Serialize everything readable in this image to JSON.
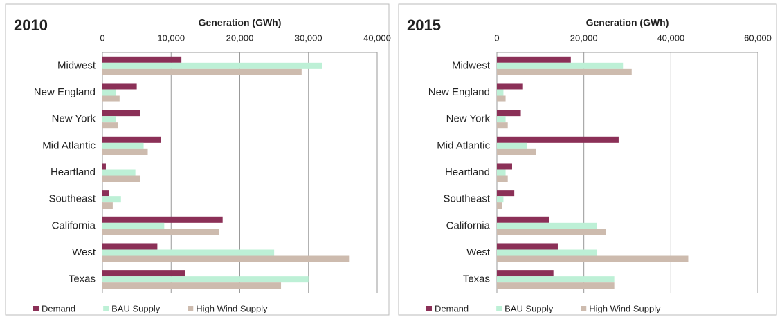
{
  "chart_data": [
    {
      "type": "bar",
      "title": "2010",
      "x_label": "Generation (GWh)",
      "categories": [
        "Midwest",
        "New England",
        "New York",
        "Mid Atlantic",
        "Heartland",
        "Southeast",
        "California",
        "West",
        "Texas"
      ],
      "series": [
        {
          "name": "Demand",
          "color": "#8b3057",
          "values": [
            11500,
            5000,
            5500,
            8500,
            500,
            1000,
            17500,
            8000,
            12000
          ]
        },
        {
          "name": "BAU Supply",
          "color": "#bdf0d6",
          "values": [
            32000,
            2000,
            2000,
            6000,
            4800,
            2700,
            9000,
            25000,
            30000
          ]
        },
        {
          "name": "High Wind Supply",
          "color": "#cdbbae",
          "values": [
            29000,
            2500,
            2300,
            6600,
            5500,
            1500,
            17000,
            36000,
            26000
          ]
        }
      ],
      "xlim": [
        0,
        40000
      ],
      "xticks": [
        0,
        {
          "value": 10000,
          "label": "10,000"
        },
        {
          "value": 20000,
          "label": "20,000"
        },
        {
          "value": 30000,
          "label": "30,000"
        },
        {
          "value": 40000,
          "label": "40,000"
        }
      ],
      "grid": true
    },
    {
      "type": "bar",
      "title": "2015",
      "x_label": "Generation (GWh)",
      "categories": [
        "Midwest",
        "New England",
        "New York",
        "Mid Atlantic",
        "Heartland",
        "Southeast",
        "California",
        "West",
        "Texas"
      ],
      "series": [
        {
          "name": "Demand",
          "color": "#8b3057",
          "values": [
            17000,
            6000,
            5500,
            28000,
            3500,
            4000,
            12000,
            14000,
            13000
          ]
        },
        {
          "name": "BAU Supply",
          "color": "#bdf0d6",
          "values": [
            29000,
            1500,
            2000,
            7000,
            2000,
            1500,
            23000,
            23000,
            27000
          ]
        },
        {
          "name": "High Wind Supply",
          "color": "#cdbbae",
          "values": [
            31000,
            2000,
            2500,
            9000,
            2500,
            1200,
            25000,
            44000,
            27000
          ]
        }
      ],
      "xlim": [
        0,
        60000
      ],
      "xticks": [
        0,
        {
          "value": 20000,
          "label": "20,000"
        },
        {
          "value": 40000,
          "label": "40,000"
        },
        {
          "value": 60000,
          "label": "60,000"
        }
      ],
      "grid": true
    }
  ]
}
